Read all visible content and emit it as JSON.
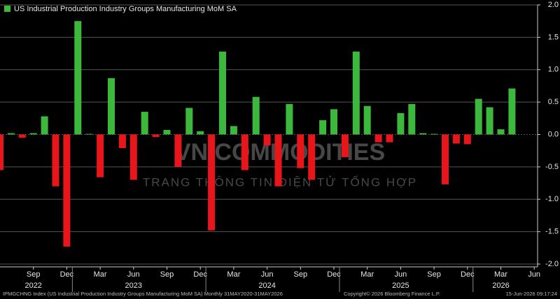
{
  "chart_data": {
    "type": "bar",
    "series": [
      {
        "name": "US Industrial Production Industry Groups Manufacturing MoM SA",
        "positive_color": "#3cb83c",
        "negative_color": "#e8161a",
        "values": [
          -0.55,
          0.02,
          -0.05,
          0.02,
          0.28,
          -0.8,
          -1.73,
          1.75,
          0.01,
          -0.66,
          0.87,
          -0.21,
          -0.7,
          0.35,
          -0.04,
          0.07,
          -0.5,
          0.41,
          0.05,
          -1.48,
          1.28,
          0.13,
          -0.55,
          0.58,
          -0.17,
          -0.8,
          0.47,
          -0.52,
          -0.7,
          0.22,
          0.39,
          -0.35,
          1.28,
          0.44,
          -0.12,
          -0.12,
          0.33,
          0.47,
          0.02,
          0.01,
          -0.77,
          -0.14,
          -0.15,
          0.55,
          0.42,
          0.08,
          0.71,
          null,
          null
        ]
      }
    ],
    "categories": [
      null,
      null,
      null,
      "Sep",
      null,
      null,
      "Dec",
      null,
      null,
      "Mar",
      null,
      null,
      "Jun",
      null,
      null,
      "Sep",
      null,
      null,
      "Dec",
      null,
      null,
      "Mar",
      null,
      null,
      "Jun",
      null,
      null,
      "Sep",
      null,
      null,
      "Dec",
      null,
      null,
      "Mar",
      null,
      null,
      "Jun",
      null,
      null,
      "Sep",
      null,
      null,
      "Dec",
      null,
      null,
      "Mar",
      null,
      null,
      "Jun"
    ],
    "years": [
      null,
      null,
      null,
      "2022",
      null,
      null,
      null,
      null,
      null,
      null,
      null,
      null,
      "2023",
      null,
      null,
      null,
      null,
      null,
      null,
      null,
      null,
      null,
      null,
      null,
      "2024",
      null,
      null,
      null,
      null,
      null,
      null,
      null,
      null,
      null,
      null,
      null,
      "2025",
      null,
      null,
      null,
      null,
      null,
      null,
      null,
      null,
      "2026",
      null,
      null,
      null
    ],
    "ylim": [
      -2.0,
      2.0
    ],
    "yticks": [
      {
        "value": -2.0,
        "label": "-2.0"
      },
      {
        "value": -1.5,
        "label": "-1.5"
      },
      {
        "value": -1.0,
        "label": "-1.0"
      },
      {
        "value": -0.5,
        "label": "-0.5"
      },
      {
        "value": 0,
        "label": "0.0"
      },
      {
        "value": 0.5,
        "label": "0.5"
      },
      {
        "value": 1.0,
        "label": "1.0"
      },
      {
        "value": 1.5,
        "label": "1.5"
      },
      {
        "value": 2.0,
        "label": "2.0"
      }
    ],
    "grid": true,
    "watermark": [
      "VN COMMODITIES",
      "TRANG THÔNG TIN ĐIỆN TỬ TỔNG HỢP"
    ],
    "footer": [
      "IPMGCHNG Index (US Industrial Production Industry Groups Manufacturing MoM SA) Monthly 31MAY2020-31MAY2026",
      "Copyright© 2026 Bloomberg Finance L.P.",
      "15-Jun-2026 09:17:24"
    ]
  }
}
